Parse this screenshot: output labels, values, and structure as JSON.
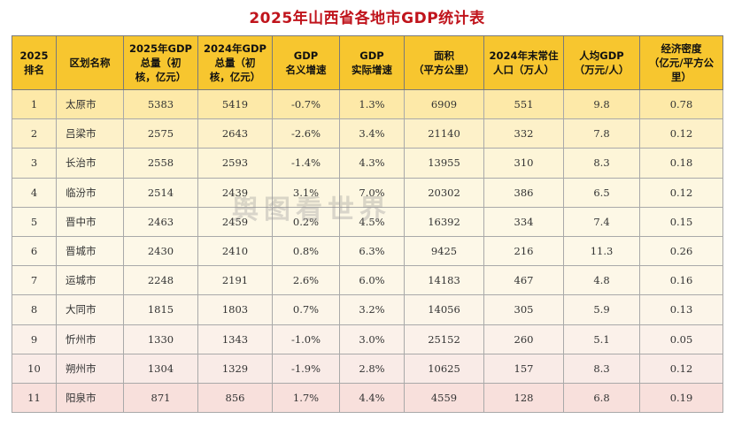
{
  "title": "2025年山西省各地市GDP统计表",
  "headers": [
    "2025\n排名",
    "区划名称",
    "2025年GDP\n总量（初\n核，亿元）",
    "2024年GDP\n总量（初\n核，亿元）",
    "GDP\n名义增速",
    "GDP\n实际增速",
    "面积\n（平方公里）",
    "2024年末常住\n人口（万人）",
    "人均GDP\n（万元/人）",
    "经济密度\n（亿元/平方公里）"
  ],
  "rows": [
    {
      "rank": "1",
      "name": "太原市",
      "gdp2025": "5383",
      "gdp2024": "5419",
      "nominal": "-0.7%",
      "real": "1.3%",
      "area": "6909",
      "pop": "551",
      "per_capita": "9.8",
      "density": "0.78"
    },
    {
      "rank": "2",
      "name": "吕梁市",
      "gdp2025": "2575",
      "gdp2024": "2643",
      "nominal": "-2.6%",
      "real": "3.4%",
      "area": "21140",
      "pop": "332",
      "per_capita": "7.8",
      "density": "0.12"
    },
    {
      "rank": "3",
      "name": "长治市",
      "gdp2025": "2558",
      "gdp2024": "2593",
      "nominal": "-1.4%",
      "real": "4.3%",
      "area": "13955",
      "pop": "310",
      "per_capita": "8.3",
      "density": "0.18"
    },
    {
      "rank": "4",
      "name": "临汾市",
      "gdp2025": "2514",
      "gdp2024": "2439",
      "nominal": "3.1%",
      "real": "7.0%",
      "area": "20302",
      "pop": "386",
      "per_capita": "6.5",
      "density": "0.12"
    },
    {
      "rank": "5",
      "name": "晋中市",
      "gdp2025": "2463",
      "gdp2024": "2459",
      "nominal": "0.2%",
      "real": "4.5%",
      "area": "16392",
      "pop": "334",
      "per_capita": "7.4",
      "density": "0.15"
    },
    {
      "rank": "6",
      "name": "晋城市",
      "gdp2025": "2430",
      "gdp2024": "2410",
      "nominal": "0.8%",
      "real": "6.3%",
      "area": "9425",
      "pop": "216",
      "per_capita": "11.3",
      "density": "0.26"
    },
    {
      "rank": "7",
      "name": "运城市",
      "gdp2025": "2248",
      "gdp2024": "2191",
      "nominal": "2.6%",
      "real": "6.0%",
      "area": "14183",
      "pop": "467",
      "per_capita": "4.8",
      "density": "0.16"
    },
    {
      "rank": "8",
      "name": "大同市",
      "gdp2025": "1815",
      "gdp2024": "1803",
      "nominal": "0.7%",
      "real": "3.2%",
      "area": "14056",
      "pop": "305",
      "per_capita": "5.9",
      "density": "0.13"
    },
    {
      "rank": "9",
      "name": "忻州市",
      "gdp2025": "1330",
      "gdp2024": "1343",
      "nominal": "-1.0%",
      "real": "3.0%",
      "area": "25152",
      "pop": "260",
      "per_capita": "5.1",
      "density": "0.05"
    },
    {
      "rank": "10",
      "name": "朔州市",
      "gdp2025": "1304",
      "gdp2024": "1329",
      "nominal": "-1.9%",
      "real": "2.8%",
      "area": "10625",
      "pop": "157",
      "per_capita": "8.3",
      "density": "0.12"
    },
    {
      "rank": "11",
      "name": "阳泉市",
      "gdp2025": "871",
      "gdp2024": "856",
      "nominal": "1.7%",
      "real": "4.4%",
      "area": "4559",
      "pop": "128",
      "per_capita": "6.8",
      "density": "0.19"
    }
  ],
  "watermark": "舆图看世界",
  "colors": {
    "title": "#c0141c",
    "header_bg": "#f7c62f"
  }
}
